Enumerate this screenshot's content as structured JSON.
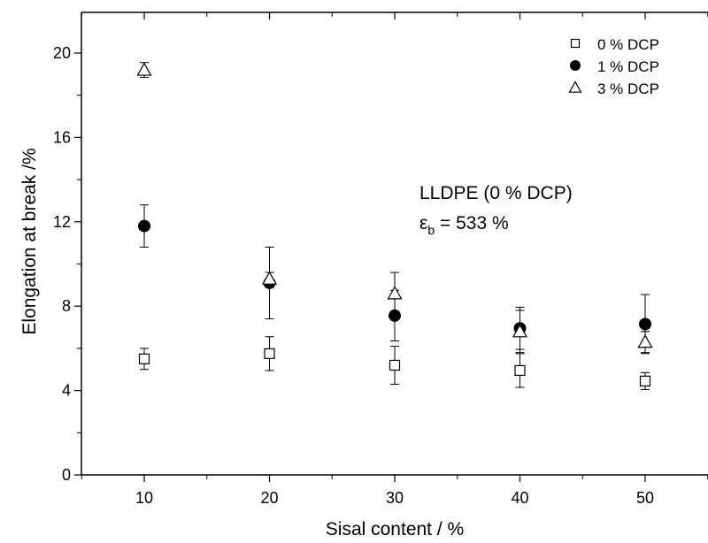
{
  "chart_data": {
    "type": "scatter",
    "title": "",
    "xlabel": "Sisal content / %",
    "ylabel": "Elongation at break /%",
    "xlim": [
      0,
      60
    ],
    "ylim": [
      0,
      22
    ],
    "xticks": [
      10,
      20,
      30,
      40,
      50
    ],
    "yticks": [
      0,
      4,
      8,
      12,
      16,
      20
    ],
    "legend_position": "top-right",
    "grid": false,
    "series": [
      {
        "name": "0 % DCP",
        "marker": "open-square",
        "color": "#000000",
        "x": [
          10,
          20,
          30,
          40,
          50
        ],
        "y": [
          5.5,
          5.75,
          5.2,
          4.95,
          4.45
        ],
        "err": [
          0.5,
          0.8,
          0.9,
          0.8,
          0.4
        ]
      },
      {
        "name": "1 % DCP",
        "marker": "filled-circle",
        "color": "#000000",
        "x": [
          10,
          20,
          30,
          40,
          50
        ],
        "y": [
          11.8,
          9.1,
          7.55,
          6.95,
          7.15
        ],
        "err": [
          1.0,
          1.7,
          1.2,
          1.0,
          1.4
        ]
      },
      {
        "name": "3 % DCP",
        "marker": "open-triangle",
        "color": "#000000",
        "x": [
          10,
          20,
          30,
          40,
          50
        ],
        "y": [
          19.2,
          9.3,
          8.6,
          6.8,
          6.3
        ],
        "err": [
          0.35,
          0.3,
          1.0,
          1.0,
          0.5
        ]
      }
    ],
    "annotations": [
      {
        "text": "LLDPE (0 % DCP)"
      },
      {
        "symbol": "ε",
        "subscript": "b",
        "text": " = 533 %"
      }
    ]
  }
}
